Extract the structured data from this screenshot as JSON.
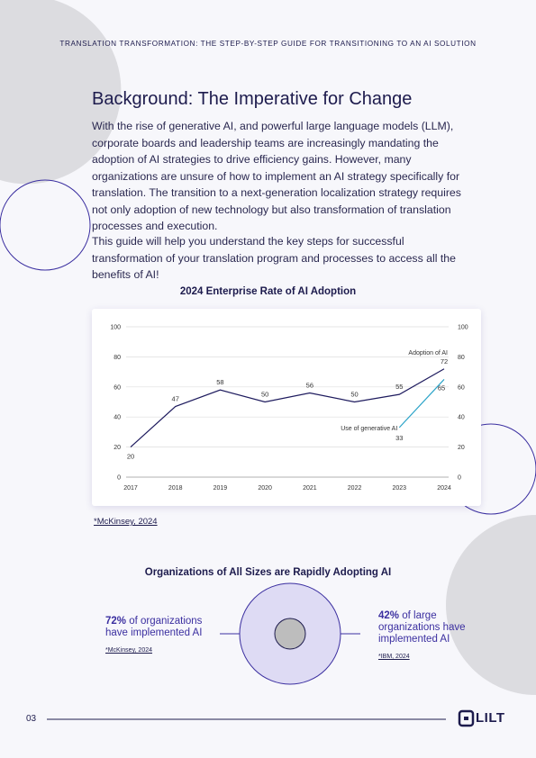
{
  "header": {
    "title": "TRANSLATION TRANSFORMATION: THE STEP-BY-STEP GUIDE FOR TRANSITIONING TO AN AI SOLUTION"
  },
  "section": {
    "heading": "Background: The Imperative for Change",
    "paragraphs": [
      "With the rise of generative AI, and powerful large language models (LLM), corporate boards and leadership teams are increasingly mandating the adoption of AI strategies to drive efficiency gains. However, many organizations are unsure of how to implement an AI strategy specifically for translation. The transition to a next-generation localization strategy requires not only adoption of new technology but also transformation of translation processes and execution.",
      "This guide will help you understand the key steps for successful transformation of your translation program and processes to access all the benefits of AI!"
    ]
  },
  "chart_data": {
    "type": "line",
    "title": "2024 Enterprise Rate of AI Adoption",
    "categories": [
      "2017",
      "2018",
      "2019",
      "2020",
      "2021",
      "2022",
      "2023",
      "2024"
    ],
    "series": [
      {
        "name": "Adoption of AI",
        "color": "#1e1b5e",
        "values": [
          20,
          47,
          58,
          50,
          56,
          50,
          55,
          72
        ]
      },
      {
        "name": "Use of generative AI",
        "color": "#2aa3c8",
        "values": [
          null,
          null,
          null,
          null,
          null,
          null,
          33,
          65
        ]
      }
    ],
    "ylim": [
      0,
      100
    ],
    "yticks": [
      0,
      20,
      40,
      60,
      80,
      100
    ],
    "y2lim": [
      0,
      100
    ],
    "y2ticks": [
      0,
      20,
      40,
      60,
      80,
      100
    ],
    "grid": true,
    "source": "*McKinsey, 2024"
  },
  "adoption": {
    "title": "Organizations of All Sizes are Rapidly Adopting AI",
    "stats": [
      {
        "value": "72%",
        "text": "of organizations have implemented AI",
        "source": "*McKinsey, 2024"
      },
      {
        "value": "42%",
        "text": "of large organizations have implemented AI",
        "source": "*IBM, 2024"
      }
    ]
  },
  "footer": {
    "page": "03",
    "logo": "LILT"
  }
}
